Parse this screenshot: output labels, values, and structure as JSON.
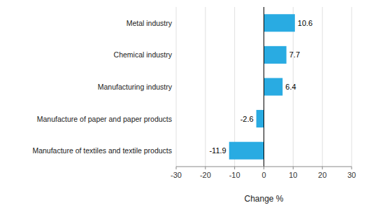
{
  "chart_data": {
    "type": "bar",
    "orientation": "horizontal",
    "categories": [
      "Manufacture of textiles and textile products",
      "Manufacture of paper and paper products",
      "Manufacturing industry",
      "Chemical industry",
      "Metal industry"
    ],
    "values": [
      -11.9,
      -2.6,
      6.4,
      7.7,
      10.6
    ],
    "color": "#29abe2",
    "xlabel": "Change %",
    "xlim": [
      -30,
      30
    ],
    "xticks": [
      -30,
      -20,
      -10,
      0,
      10,
      20,
      30
    ],
    "grid": true,
    "data_labels": true
  }
}
